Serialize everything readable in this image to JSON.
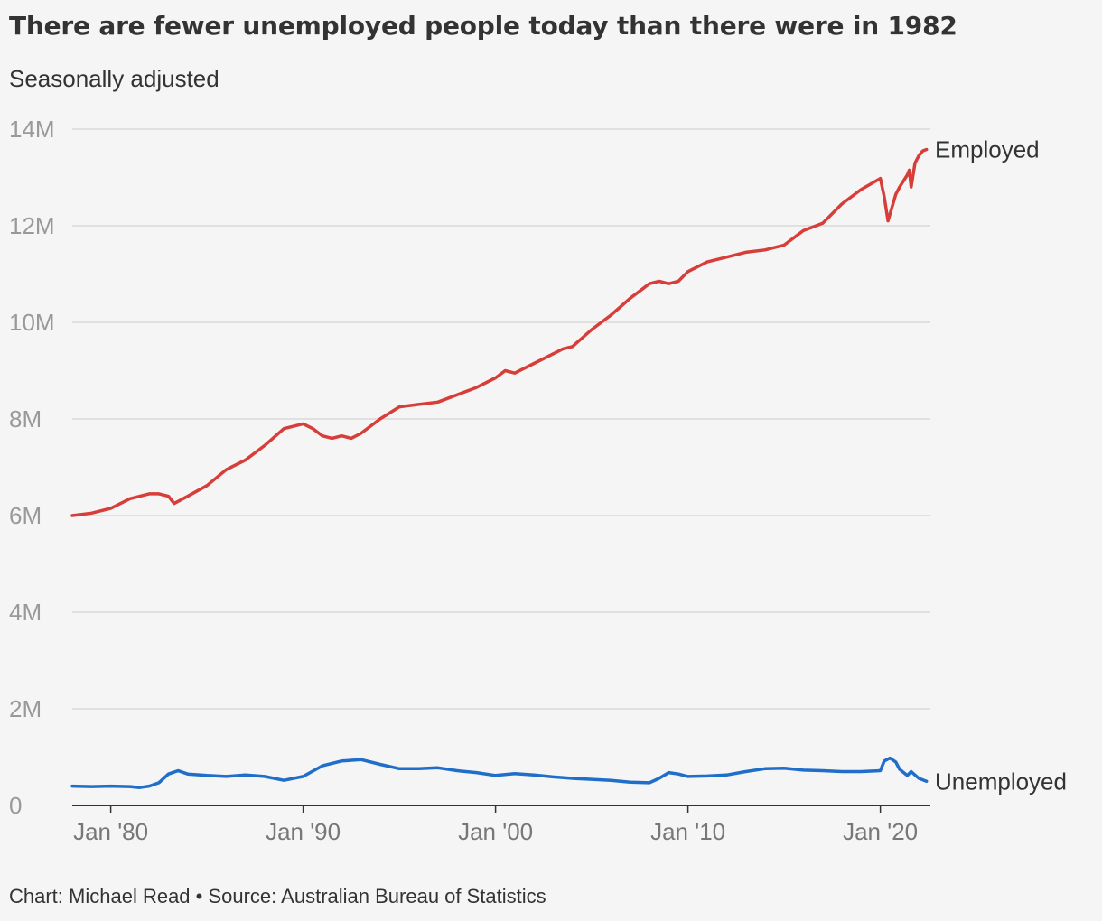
{
  "title": "There are fewer unemployed people today than there were in 1982",
  "subtitle": "Seasonally adjusted",
  "footer": "Chart: Michael Read • Source: Australian Bureau of Statistics",
  "chart_data": {
    "type": "line",
    "title": "There are fewer unemployed people today than there were in 1982",
    "subtitle": "Seasonally adjusted",
    "xlabel": "",
    "ylabel": "",
    "x_range": [
      1978.0,
      2022.6
    ],
    "ylim": [
      0,
      14000000
    ],
    "y_ticks": [
      0,
      2000000,
      4000000,
      6000000,
      8000000,
      10000000,
      12000000,
      14000000
    ],
    "y_tick_labels": [
      "0",
      "2M",
      "4M",
      "6M",
      "8M",
      "10M",
      "12M",
      "14M"
    ],
    "x_ticks": [
      1980,
      1990,
      2000,
      2010,
      2020
    ],
    "x_tick_labels": [
      "Jan '80",
      "Jan '90",
      "Jan '00",
      "Jan '10",
      "Jan '20"
    ],
    "grid": true,
    "legend": "direct labels at line ends",
    "series": [
      {
        "name": "Employed",
        "color": "#d73e3a",
        "x": [
          1978.0,
          1979.0,
          1980.0,
          1981.0,
          1982.0,
          1982.5,
          1983.0,
          1983.3,
          1984.0,
          1985.0,
          1986.0,
          1987.0,
          1988.0,
          1989.0,
          1990.0,
          1990.5,
          1991.0,
          1991.5,
          1992.0,
          1992.5,
          1993.0,
          1994.0,
          1995.0,
          1996.0,
          1997.0,
          1998.0,
          1999.0,
          2000.0,
          2000.5,
          2001.0,
          2002.0,
          2003.0,
          2003.5,
          2004.0,
          2005.0,
          2006.0,
          2007.0,
          2008.0,
          2008.5,
          2009.0,
          2009.5,
          2010.0,
          2011.0,
          2012.0,
          2013.0,
          2014.0,
          2015.0,
          2016.0,
          2017.0,
          2018.0,
          2019.0,
          2020.0,
          2020.2,
          2020.4,
          2020.8,
          2021.0,
          2021.4,
          2021.5,
          2021.6,
          2021.8,
          2022.0,
          2022.2,
          2022.4
        ],
        "values": [
          6000000,
          6050000,
          6150000,
          6350000,
          6450000,
          6450000,
          6400000,
          6250000,
          6400000,
          6620000,
          6950000,
          7150000,
          7450000,
          7800000,
          7900000,
          7800000,
          7650000,
          7600000,
          7650000,
          7600000,
          7700000,
          8000000,
          8250000,
          8300000,
          8350000,
          8500000,
          8650000,
          8850000,
          9000000,
          8950000,
          9150000,
          9350000,
          9450000,
          9500000,
          9850000,
          10150000,
          10500000,
          10800000,
          10850000,
          10800000,
          10850000,
          11050000,
          11250000,
          11350000,
          11450000,
          11500000,
          11600000,
          11900000,
          12050000,
          12450000,
          12750000,
          12980000,
          12600000,
          12100000,
          12650000,
          12800000,
          13050000,
          13150000,
          12800000,
          13300000,
          13450000,
          13550000,
          13580000
        ]
      },
      {
        "name": "Unemployed",
        "color": "#1f6ec9",
        "x": [
          1978.0,
          1979.0,
          1980.0,
          1981.0,
          1981.5,
          1982.0,
          1982.5,
          1983.0,
          1983.5,
          1984.0,
          1985.0,
          1986.0,
          1987.0,
          1988.0,
          1989.0,
          1990.0,
          1991.0,
          1992.0,
          1993.0,
          1994.0,
          1995.0,
          1996.0,
          1997.0,
          1998.0,
          1999.0,
          2000.0,
          2001.0,
          2002.0,
          2003.0,
          2004.0,
          2005.0,
          2006.0,
          2007.0,
          2008.0,
          2008.5,
          2009.0,
          2009.5,
          2010.0,
          2011.0,
          2012.0,
          2013.0,
          2014.0,
          2015.0,
          2016.0,
          2017.0,
          2018.0,
          2019.0,
          2020.0,
          2020.2,
          2020.5,
          2020.8,
          2021.0,
          2021.4,
          2021.6,
          2022.0,
          2022.4
        ],
        "values": [
          400000,
          390000,
          400000,
          390000,
          370000,
          400000,
          470000,
          650000,
          720000,
          650000,
          620000,
          600000,
          630000,
          600000,
          520000,
          600000,
          820000,
          920000,
          950000,
          850000,
          760000,
          760000,
          780000,
          720000,
          680000,
          620000,
          660000,
          630000,
          590000,
          560000,
          540000,
          520000,
          480000,
          470000,
          560000,
          680000,
          650000,
          600000,
          610000,
          630000,
          700000,
          760000,
          770000,
          730000,
          720000,
          700000,
          700000,
          720000,
          920000,
          980000,
          900000,
          750000,
          620000,
          700000,
          560000,
          500000
        ]
      }
    ]
  }
}
